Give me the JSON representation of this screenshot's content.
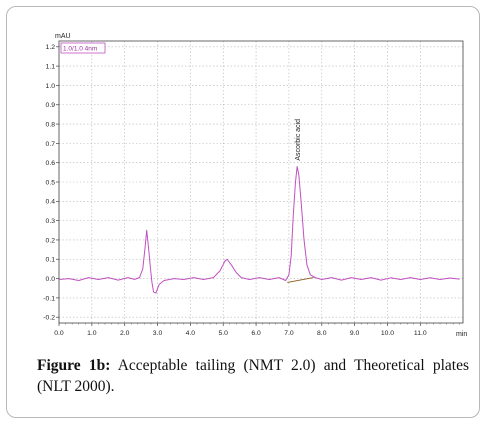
{
  "chart_data": {
    "type": "line",
    "yunit": "mAU",
    "xunit": "min",
    "legend": "1.0/1.0 4nm",
    "xlim": [
      0.0,
      12.3
    ],
    "ylim": [
      -0.23,
      1.23
    ],
    "xticks": [
      "0.0",
      "1.0",
      "2.0",
      "3.0",
      "4.0",
      "5.0",
      "6.0",
      "7.0",
      "8.0",
      "9.0",
      "10.0",
      "11.0"
    ],
    "yticks": [
      "1.2",
      "1.1",
      "1.0",
      "0.9",
      "0.8",
      "0.7",
      "0.6",
      "0.5",
      "0.4",
      "0.3",
      "0.2",
      "0.1",
      "0.0",
      "-0.1",
      "-0.2"
    ],
    "peak_label": {
      "text": "Ascorbic acid",
      "x": 7.25,
      "y": 0.59
    },
    "grid": true,
    "series": [
      {
        "color": "#c050c0",
        "points": [
          [
            0.0,
            -0.005
          ],
          [
            0.3,
            0.0
          ],
          [
            0.6,
            -0.01
          ],
          [
            0.9,
            0.005
          ],
          [
            1.2,
            -0.005
          ],
          [
            1.5,
            0.005
          ],
          [
            1.8,
            -0.008
          ],
          [
            2.1,
            0.005
          ],
          [
            2.3,
            -0.004
          ],
          [
            2.45,
            0.005
          ],
          [
            2.55,
            0.05
          ],
          [
            2.62,
            0.16
          ],
          [
            2.67,
            0.25
          ],
          [
            2.72,
            0.17
          ],
          [
            2.78,
            0.06
          ],
          [
            2.83,
            -0.02
          ],
          [
            2.88,
            -0.07
          ],
          [
            2.95,
            -0.075
          ],
          [
            3.05,
            -0.03
          ],
          [
            3.2,
            -0.01
          ],
          [
            3.5,
            0.0
          ],
          [
            3.8,
            -0.005
          ],
          [
            4.1,
            0.005
          ],
          [
            4.4,
            -0.005
          ],
          [
            4.7,
            0.005
          ],
          [
            4.9,
            0.04
          ],
          [
            5.05,
            0.09
          ],
          [
            5.12,
            0.1
          ],
          [
            5.25,
            0.07
          ],
          [
            5.4,
            0.03
          ],
          [
            5.55,
            0.005
          ],
          [
            5.8,
            -0.005
          ],
          [
            6.1,
            0.005
          ],
          [
            6.4,
            -0.005
          ],
          [
            6.7,
            0.005
          ],
          [
            6.9,
            -0.01
          ],
          [
            7.0,
            0.02
          ],
          [
            7.07,
            0.12
          ],
          [
            7.13,
            0.32
          ],
          [
            7.2,
            0.5
          ],
          [
            7.25,
            0.58
          ],
          [
            7.3,
            0.54
          ],
          [
            7.38,
            0.38
          ],
          [
            7.46,
            0.2
          ],
          [
            7.55,
            0.07
          ],
          [
            7.65,
            0.02
          ],
          [
            7.8,
            0.005
          ],
          [
            8.0,
            -0.005
          ],
          [
            8.3,
            0.005
          ],
          [
            8.6,
            -0.008
          ],
          [
            8.9,
            0.005
          ],
          [
            9.2,
            -0.005
          ],
          [
            9.5,
            0.005
          ],
          [
            9.8,
            -0.008
          ],
          [
            10.1,
            0.004
          ],
          [
            10.4,
            -0.005
          ],
          [
            10.7,
            0.005
          ],
          [
            11.0,
            -0.005
          ],
          [
            11.3,
            0.004
          ],
          [
            11.6,
            -0.005
          ],
          [
            11.9,
            0.003
          ],
          [
            12.2,
            -0.003
          ]
        ]
      }
    ]
  },
  "caption": {
    "label": "Figure 1b:",
    "text": " Acceptable tailing (NMT 2.0) and Theoretical plates (NLT 2000)."
  }
}
